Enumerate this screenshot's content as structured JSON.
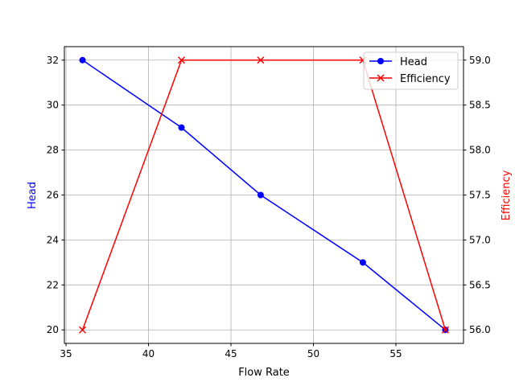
{
  "chart_data": {
    "type": "line",
    "title": "",
    "xlabel": "Flow Rate",
    "ylabel": "Head",
    "ylabel_right": "Efficiency",
    "x": [
      36,
      42,
      46.8,
      53,
      58
    ],
    "series": [
      {
        "name": "Head",
        "axis": "left",
        "values": [
          32,
          29,
          26,
          23,
          20
        ],
        "color": "#0000ff",
        "marker": "circle"
      },
      {
        "name": "Efficiency",
        "axis": "right",
        "values": [
          56,
          59,
          59,
          59,
          56
        ],
        "color": "#ff0000",
        "marker": "x"
      }
    ],
    "xlim": [
      34.9,
      59.1
    ],
    "ylim": [
      19.4,
      32.6
    ],
    "ylim_right": [
      55.85,
      59.15
    ],
    "xticks": [
      35,
      40,
      45,
      50,
      55
    ],
    "yticks": [
      20,
      22,
      24,
      26,
      28,
      30,
      32
    ],
    "yticks_right": [
      "56.0",
      "56.5",
      "57.0",
      "57.5",
      "58.0",
      "58.5",
      "59.0"
    ],
    "grid": true,
    "legend_position": "top-right"
  }
}
